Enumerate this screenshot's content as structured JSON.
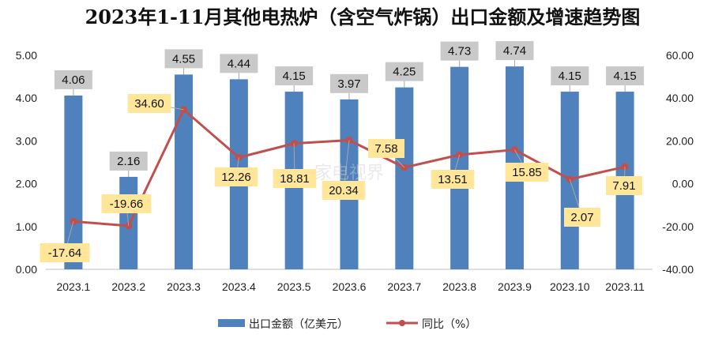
{
  "chart_data": {
    "type": "bar+line",
    "title": "2023年1-11月其他电热炉（含空气炸锅）出口金额及增速趋势图",
    "categories": [
      "2023.1",
      "2023.2",
      "2023.3",
      "2023.4",
      "2023.5",
      "2023.6",
      "2023.7",
      "2023.8",
      "2023.9",
      "2023.10",
      "2023.11"
    ],
    "series": [
      {
        "name": "出口金额（亿美元）",
        "type": "bar",
        "axis": "left",
        "color": "#4f81bd",
        "values": [
          4.06,
          2.16,
          4.55,
          4.44,
          4.15,
          3.97,
          4.25,
          4.73,
          4.74,
          4.15,
          4.15
        ],
        "labels": [
          "4.06",
          "2.16",
          "4.55",
          "4.44",
          "4.15",
          "3.97",
          "4.25",
          "4.73",
          "4.74",
          "4.15",
          "4.15"
        ],
        "label_bg": "#c9c9c9"
      },
      {
        "name": "同比（%）",
        "type": "line",
        "axis": "right",
        "color": "#c0504d",
        "values": [
          -17.64,
          -19.66,
          34.6,
          12.26,
          18.81,
          20.34,
          7.58,
          13.51,
          15.85,
          2.07,
          7.91
        ],
        "labels": [
          "-17.64",
          "-19.66",
          "34.60",
          "12.26",
          "18.81",
          "20.34",
          "7.58",
          "13.51",
          "15.85",
          "2.07",
          "7.91"
        ],
        "label_bg": "#ffe699"
      }
    ],
    "y_left": {
      "min": 0,
      "max": 5,
      "ticks": [
        "0.00",
        "1.00",
        "2.00",
        "3.00",
        "4.00",
        "5.00"
      ]
    },
    "y_right": {
      "min": -40,
      "max": 60,
      "ticks": [
        "-40.00",
        "-20.00",
        "0.00",
        "20.00",
        "40.00",
        "60.00"
      ]
    },
    "grid": false,
    "legend_position": "bottom"
  },
  "watermark": "家电视界"
}
